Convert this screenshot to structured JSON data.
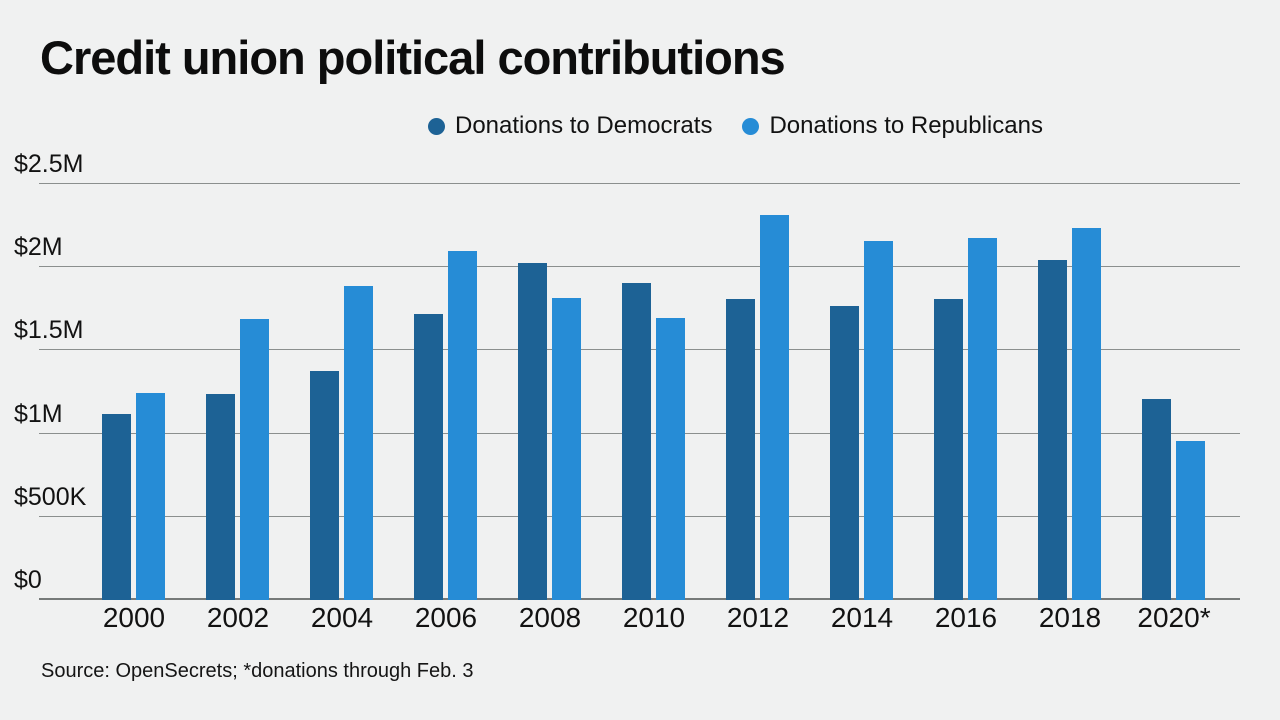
{
  "title": "Credit union political contributions",
  "source_note": "Source: OpenSecrets; *donations through Feb. 3",
  "colors": {
    "background": "#f0f1f1",
    "democrat": "#1d6295",
    "republican": "#268cd6",
    "gridline": "#8b8f8e",
    "baseline": "#767a79",
    "text": "#121212"
  },
  "legend": {
    "items": [
      {
        "label": "Donations to Democrats"
      },
      {
        "label": "Donations to Republicans"
      }
    ]
  },
  "chart_data": {
    "type": "bar",
    "title": "Credit union political contributions",
    "unit": "USD millions",
    "categories": [
      "2000",
      "2002",
      "2004",
      "2006",
      "2008",
      "2010",
      "2012",
      "2014",
      "2016",
      "2018",
      "2020*"
    ],
    "series": [
      {
        "name": "Donations to Democrats",
        "color": "#1d6295",
        "values": [
          1.11,
          1.23,
          1.37,
          1.71,
          2.02,
          1.9,
          1.8,
          1.76,
          1.8,
          2.04,
          1.2
        ]
      },
      {
        "name": "Donations to Republicans",
        "color": "#268cd6",
        "values": [
          1.24,
          1.68,
          1.88,
          2.09,
          1.81,
          1.69,
          2.31,
          2.15,
          2.17,
          2.23,
          0.95
        ]
      }
    ],
    "ylim": [
      0,
      2.5
    ],
    "yticks": [
      {
        "value": 0,
        "label": "$0"
      },
      {
        "value": 0.5,
        "label": "$500K"
      },
      {
        "value": 1,
        "label": "$1M"
      },
      {
        "value": 1.5,
        "label": "$1.5M"
      },
      {
        "value": 2,
        "label": "$2M"
      },
      {
        "value": 2.5,
        "label": "$2.5M"
      }
    ],
    "grid": true,
    "legend_position": "top-right",
    "footnote": "*donations through Feb. 3"
  }
}
